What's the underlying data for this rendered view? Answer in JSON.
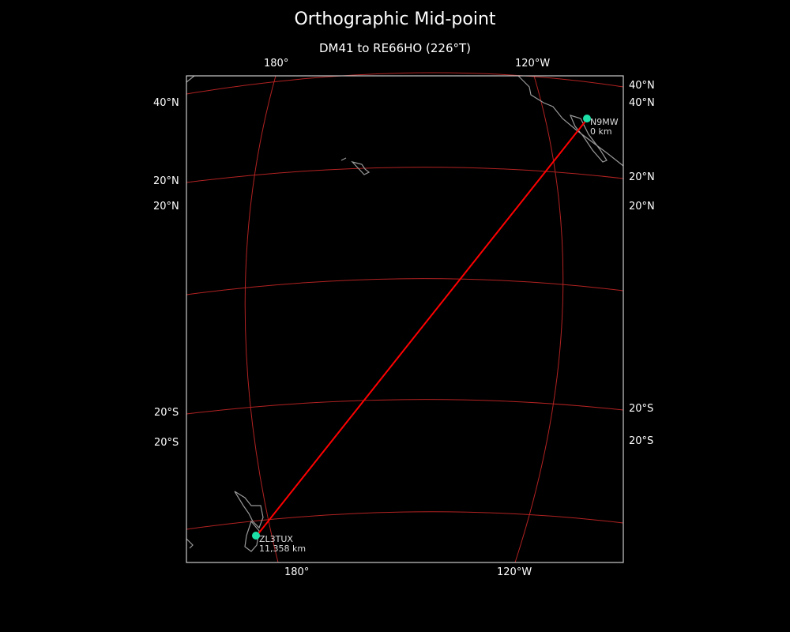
{
  "title": "Orthographic Mid-point",
  "subtitle": "DM41 to RE66HO (226°T)",
  "axis_labels": {
    "top": [
      "180°",
      "120°W"
    ],
    "bottom": [
      "180°",
      "120°W"
    ],
    "left": [
      "40°N",
      "20°N",
      "20°N",
      "20°S",
      "20°S"
    ],
    "right": [
      "40°N",
      "40°N",
      "20°N",
      "20°N",
      "20°S",
      "20°S"
    ]
  },
  "stations": [
    {
      "call": "N9MW",
      "distance": "0 km"
    },
    {
      "call": "ZL3TUX",
      "distance": "11,358 km"
    }
  ],
  "colors": {
    "background": "#000000",
    "path": "#ff0000",
    "grid": "#b22222",
    "station": "#1de0a8",
    "coast": "#999999"
  }
}
